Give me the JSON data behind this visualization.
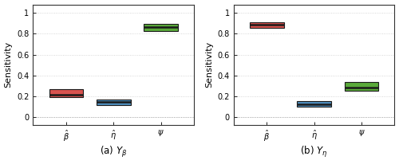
{
  "subplot_a": {
    "title": "(a) $Y_{\\beta}$",
    "boxes": [
      {
        "x": 1,
        "q1": 0.19,
        "median": 0.22,
        "q3": 0.27,
        "color": "#d9534f",
        "edgecolor": "#1a1a1a"
      },
      {
        "x": 2,
        "q1": 0.12,
        "median": 0.15,
        "q3": 0.17,
        "color": "#4f8fbf",
        "edgecolor": "#1a1a1a"
      },
      {
        "x": 3,
        "q1": 0.825,
        "median": 0.865,
        "q3": 0.895,
        "color": "#5aaa3a",
        "edgecolor": "#1a1a1a"
      }
    ],
    "xlabels": [
      "$\\hat{\\beta}$",
      "$\\hat{\\eta}$",
      "$\\psi$"
    ],
    "ylabel": "Sensitivity",
    "ylim": [
      -0.07,
      1.08
    ],
    "yticks": [
      0,
      0.2,
      0.4,
      0.6,
      0.8,
      1.0
    ]
  },
  "subplot_b": {
    "title": "(b) $Y_{\\eta}$",
    "boxes": [
      {
        "x": 1,
        "q1": 0.855,
        "median": 0.885,
        "q3": 0.91,
        "color": "#d9534f",
        "edgecolor": "#1a1a1a"
      },
      {
        "x": 2,
        "q1": 0.105,
        "median": 0.125,
        "q3": 0.155,
        "color": "#4f8fbf",
        "edgecolor": "#1a1a1a"
      },
      {
        "x": 3,
        "q1": 0.255,
        "median": 0.285,
        "q3": 0.335,
        "color": "#5aaa3a",
        "edgecolor": "#1a1a1a"
      }
    ],
    "xlabels": [
      "$\\hat{\\beta}$",
      "$\\hat{\\eta}$",
      "$\\psi$"
    ],
    "ylabel": "Sensitivity",
    "ylim": [
      -0.07,
      1.08
    ],
    "yticks": [
      0,
      0.2,
      0.4,
      0.6,
      0.8,
      1.0
    ]
  },
  "box_width": 0.72,
  "linewidth": 0.8,
  "median_linewidth": 1.8,
  "background_color": "#ffffff",
  "grid_color": "#cccccc",
  "zero_line_color": "#999999",
  "tick_fontsize": 7,
  "label_fontsize": 8,
  "xlabel_fontsize": 8.5
}
